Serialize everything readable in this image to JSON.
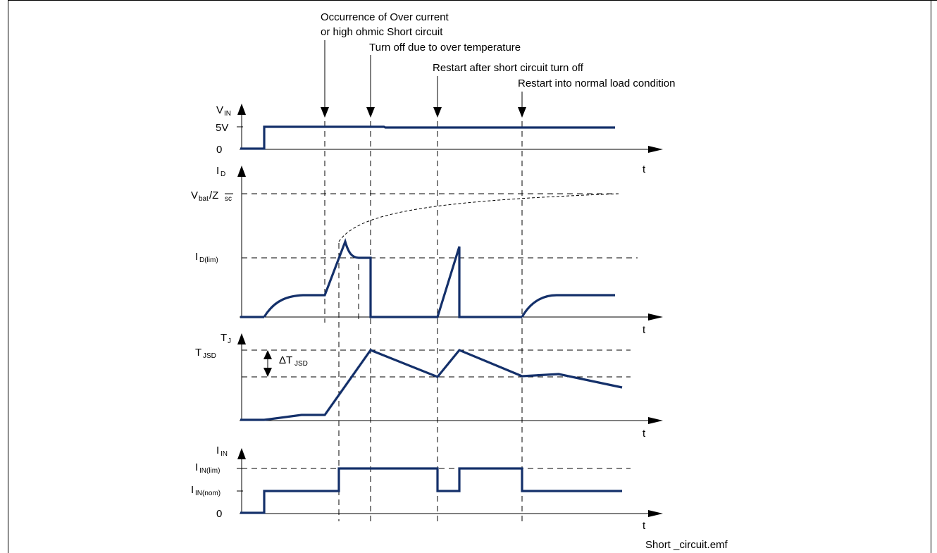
{
  "colors": {
    "signal": "#14306a",
    "axis": "#000000",
    "frame": "#000000"
  },
  "annotations": {
    "overcurrent_line1": "Occurrence of Over current",
    "overcurrent_line2": "or high ohmic Short circuit",
    "over_temperature": "Turn off due to over temperature",
    "restart_short": "Restart after short circuit turn off",
    "restart_normal": "Restart into normal load condition"
  },
  "plots": {
    "vin": {
      "symbol": "V",
      "sub": "IN",
      "tick_high": "5V",
      "tick_zero": "0",
      "t_label": "t"
    },
    "id": {
      "symbol": "I",
      "sub": "D",
      "vbat_main": "V",
      "vbat_sub": "bat",
      "zsc_main": "/Z",
      "zsc_sub": "sc",
      "lim_main": "I",
      "lim_sub": "D(lim)",
      "t_label": "t"
    },
    "tj": {
      "symbol": "T",
      "sub": "J",
      "tjsd_main": "T",
      "tjsd_sub": "JSD",
      "delta_main": "ΔT",
      "delta_sub": "JSD",
      "t_label": "t"
    },
    "iin": {
      "symbol": "I",
      "sub": "IN",
      "lim_main": "I",
      "lim_sub": "IN(lim)",
      "nom_main": "I",
      "nom_sub": "IN(nom)",
      "tick_zero": "0",
      "t_label": "t"
    }
  },
  "filename": "Short _circuit.emf"
}
